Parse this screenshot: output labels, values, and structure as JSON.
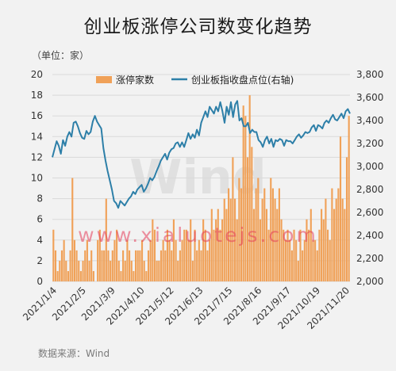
{
  "title": "创业板涨停公司数变化趋势",
  "unit_label": "（单位：家）",
  "source": "数据来源：Wind",
  "watermark_logo": "Wind",
  "watermark_text": "www.xialuotejs.com",
  "colors": {
    "bar": "#f0a158",
    "line": "#2d7fa8",
    "grid": "#d9d9d9"
  },
  "chart_data": {
    "type": "bar+line",
    "title": "创业板涨停公司数变化趋势",
    "legend_position": "top-right",
    "grid": true,
    "x_tick_labels": [
      "2021/1/4",
      "2021/2/5",
      "2021/3/9",
      "2021/4/10",
      "2021/5/12",
      "2021/6/13",
      "2021/7/15",
      "2021/8/16",
      "2021/9/17",
      "2021/10/19",
      "2021/11/20"
    ],
    "y_left": {
      "ticks": [
        0,
        2,
        4,
        6,
        8,
        10,
        12,
        14,
        16,
        18,
        20
      ],
      "ylim": [
        0,
        20
      ]
    },
    "y_right": {
      "ticks": [
        "2,000",
        "2,200",
        "2,400",
        "2,600",
        "2,800",
        "3,000",
        "3,200",
        "3,400",
        "3,600",
        "3,800"
      ],
      "ylim": [
        2000,
        3800
      ]
    },
    "series": [
      {
        "name": "涨停家数",
        "axis": "left",
        "kind": "bar",
        "values": [
          5,
          3,
          1,
          2,
          3,
          4,
          2,
          1,
          3,
          10,
          4,
          3,
          2,
          1,
          2,
          3,
          4,
          2,
          3,
          1,
          0,
          4,
          5,
          3,
          3,
          8,
          3,
          2,
          3,
          4,
          5,
          2,
          1,
          3,
          2,
          4,
          3,
          2,
          1,
          3,
          3,
          3,
          4,
          2,
          1,
          3,
          4,
          6,
          5,
          2,
          2,
          3,
          4,
          3,
          5,
          4,
          3,
          6,
          4,
          2,
          3,
          4,
          5,
          5,
          4,
          6,
          2,
          5,
          3,
          4,
          3,
          6,
          5,
          3,
          4,
          7,
          5,
          6,
          7,
          5,
          6,
          8,
          7,
          9,
          8,
          12,
          8,
          6,
          10,
          9,
          17,
          16,
          12,
          18,
          13,
          7,
          9,
          10,
          6,
          8,
          9,
          7,
          5,
          10,
          9,
          8,
          7,
          9,
          6,
          5,
          4,
          5,
          4,
          3,
          5,
          4,
          2,
          5,
          3,
          4,
          6,
          5,
          7,
          4,
          4,
          3,
          5,
          7,
          6,
          8,
          5,
          4,
          9,
          7,
          8,
          9,
          14,
          8,
          7,
          12,
          16
        ]
      },
      {
        "name": "创业板指收盘点位(右轴)",
        "axis": "right",
        "kind": "line",
        "values": [
          3080,
          3150,
          3220,
          3180,
          3110,
          3230,
          3180,
          3260,
          3300,
          3260,
          3380,
          3390,
          3350,
          3290,
          3250,
          3240,
          3310,
          3280,
          3300,
          3390,
          3440,
          3390,
          3360,
          3330,
          3160,
          3050,
          2960,
          2880,
          2800,
          2700,
          2680,
          2640,
          2700,
          2680,
          2660,
          2690,
          2720,
          2740,
          2780,
          2760,
          2800,
          2820,
          2840,
          2780,
          2810,
          2850,
          2900,
          2880,
          2910,
          2960,
          3000,
          3050,
          3080,
          3110,
          3060,
          3120,
          3150,
          3160,
          3200,
          3210,
          3170,
          3210,
          3170,
          3230,
          3290,
          3240,
          3280,
          3250,
          3320,
          3270,
          3380,
          3430,
          3480,
          3430,
          3520,
          3490,
          3460,
          3520,
          3480,
          3560,
          3480,
          3380,
          3520,
          3450,
          3560,
          3430,
          3540,
          3570,
          3400,
          3420,
          3350,
          3350,
          3380,
          3290,
          3320,
          3300,
          3300,
          3230,
          3210,
          3170,
          3230,
          3260,
          3200,
          3240,
          3170,
          3230,
          3220,
          3240,
          3230,
          3180,
          3230,
          3220,
          3220,
          3200,
          3230,
          3260,
          3280,
          3250,
          3270,
          3300,
          3290,
          3300,
          3340,
          3360,
          3310,
          3360,
          3350,
          3330,
          3380,
          3400,
          3380,
          3420,
          3450,
          3410,
          3400,
          3430,
          3460,
          3420,
          3480,
          3500,
          3460
        ]
      }
    ]
  }
}
